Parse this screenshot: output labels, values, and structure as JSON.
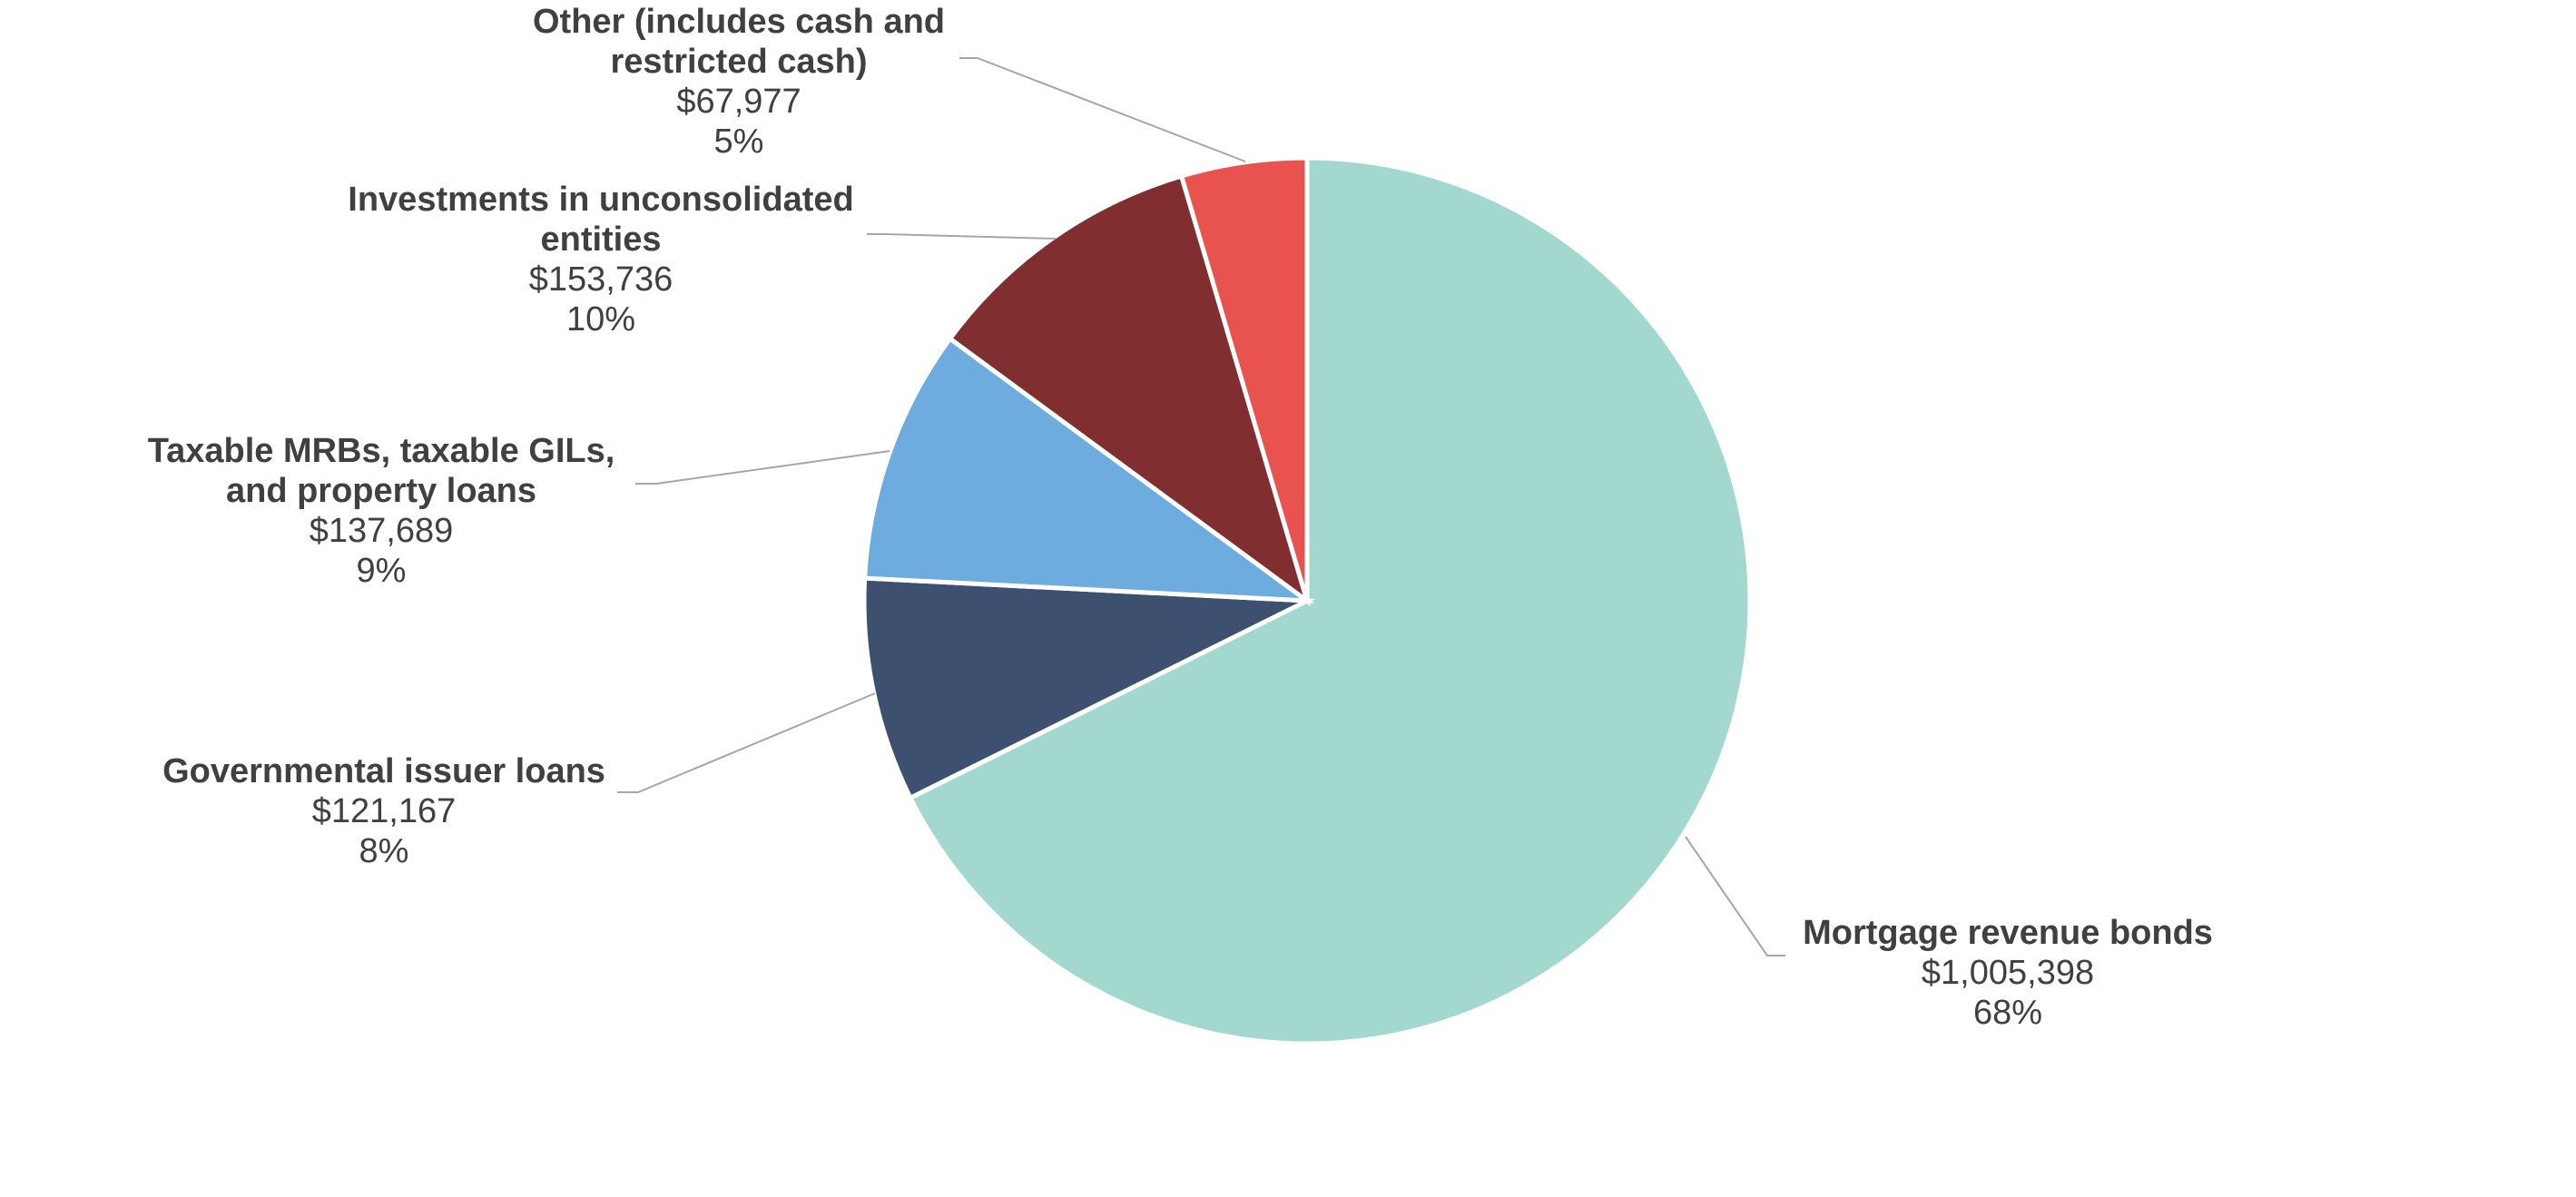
{
  "chart_data": {
    "type": "pie",
    "title": "",
    "start_angle_deg": 0,
    "direction": "clockwise",
    "slices": [
      {
        "name_lines": [
          "Mortgage revenue bonds"
        ],
        "value": 1005398,
        "value_label": "$1,005,398",
        "percent_label": "68%",
        "color": "#a3d8cf"
      },
      {
        "name_lines": [
          "Governmental issuer loans"
        ],
        "value": 121167,
        "value_label": "$121,167",
        "percent_label": "8%",
        "color": "#3e5070"
      },
      {
        "name_lines": [
          "Taxable MRBs, taxable GILs,",
          "and property loans"
        ],
        "value": 137689,
        "value_label": "$137,689",
        "percent_label": "9%",
        "color": "#6eacdf"
      },
      {
        "name_lines": [
          "Investments in unconsolidated",
          "entities"
        ],
        "value": 153736,
        "value_label": "$153,736",
        "percent_label": "10%",
        "color": "#802e30"
      },
      {
        "name_lines": [
          "Other (includes cash and",
          "restricted cash)"
        ],
        "value": 67977,
        "value_label": "$67,977",
        "percent_label": "5%",
        "color": "#e8524f"
      }
    ]
  }
}
